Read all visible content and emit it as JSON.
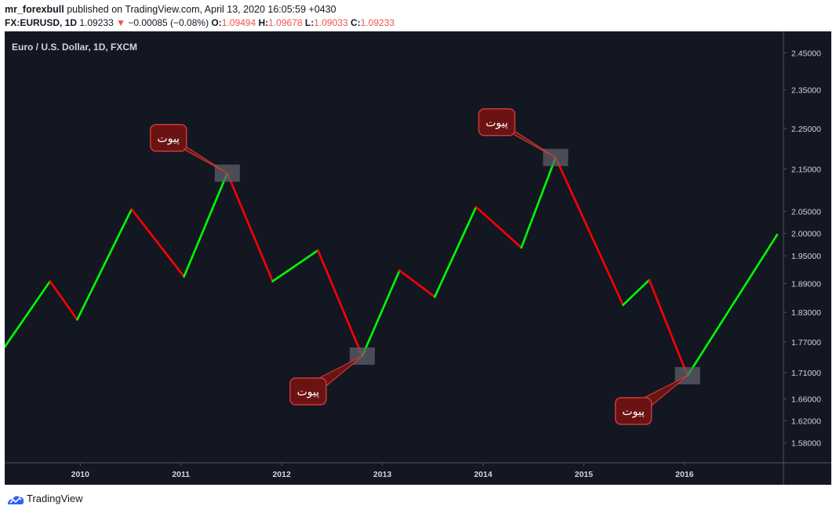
{
  "header": {
    "author": "mr_forexbull",
    "published": "published on TradingView.com, April 13, 2020 16:05:59 +0430",
    "symbol": "FX:EURUSD, 1D",
    "last": "1.09233",
    "arrow": "▼",
    "change": "−0.00085 (−0.08%)",
    "o_label": "O:",
    "o_value": "1.09494",
    "h_label": "H:",
    "h_value": "1.09678",
    "l_label": "L:",
    "l_value": "1.09033",
    "c_label": "C:",
    "c_value": "1.09233"
  },
  "footer": {
    "brand": "TradingView"
  },
  "colors": {
    "background": "#131722",
    "up": "#00ff00",
    "down": "#ff0000",
    "axis_text": "#d1d4dc",
    "callout_fill": "#6b1313",
    "callout_border": "#c73a3a",
    "marker": "#5d606b",
    "header_down": "#ef5350"
  },
  "chart_data": {
    "type": "line",
    "title": "Euro / U.S. Dollar, 1D, FXCM",
    "x_ticks": [
      "2010",
      "2011",
      "2012",
      "2013",
      "2014",
      "2015",
      "2016"
    ],
    "x_range": [
      2009.25,
      2016.92
    ],
    "y_ticks": [
      "2.45000",
      "2.35000",
      "2.25000",
      "2.15000",
      "2.05000",
      "2.00000",
      "1.95000",
      "1.89000",
      "1.83000",
      "1.77000",
      "1.71000",
      "1.66000",
      "1.62000",
      "1.58000"
    ],
    "y_scale": "log",
    "y_range": [
      1.545,
      2.51
    ],
    "series": [
      {
        "points": [
          [
            2009.25,
            1.76
          ],
          [
            2009.7,
            1.895
          ],
          [
            2009.97,
            1.815
          ],
          [
            2010.51,
            2.055
          ],
          [
            2011.03,
            1.905
          ],
          [
            2011.46,
            2.14
          ],
          [
            2011.91,
            1.895
          ],
          [
            2012.36,
            1.962
          ],
          [
            2012.8,
            1.742
          ],
          [
            2013.17,
            1.918
          ],
          [
            2013.52,
            1.862
          ],
          [
            2013.93,
            2.06
          ],
          [
            2014.38,
            1.968
          ],
          [
            2014.72,
            2.178
          ],
          [
            2015.39,
            1.845
          ],
          [
            2015.65,
            1.898
          ],
          [
            2016.03,
            1.704
          ],
          [
            2016.92,
            1.997
          ]
        ],
        "colors": [
          "up",
          "down",
          "up",
          "down",
          "up",
          "down",
          "up",
          "down",
          "up",
          "down",
          "up",
          "down",
          "up",
          "down",
          "up",
          "down",
          "up"
        ]
      }
    ],
    "annotations": [
      {
        "text": "پیوت",
        "x": 2011.46,
        "y": 2.14,
        "position": "upper-left"
      },
      {
        "text": "پیوت",
        "x": 2012.8,
        "y": 1.742,
        "position": "lower-left"
      },
      {
        "text": "پیوت",
        "x": 2014.72,
        "y": 2.178,
        "position": "upper-left"
      },
      {
        "text": "پیوت",
        "x": 2016.03,
        "y": 1.704,
        "position": "lower-left"
      }
    ],
    "grid": false,
    "legend": "none"
  }
}
